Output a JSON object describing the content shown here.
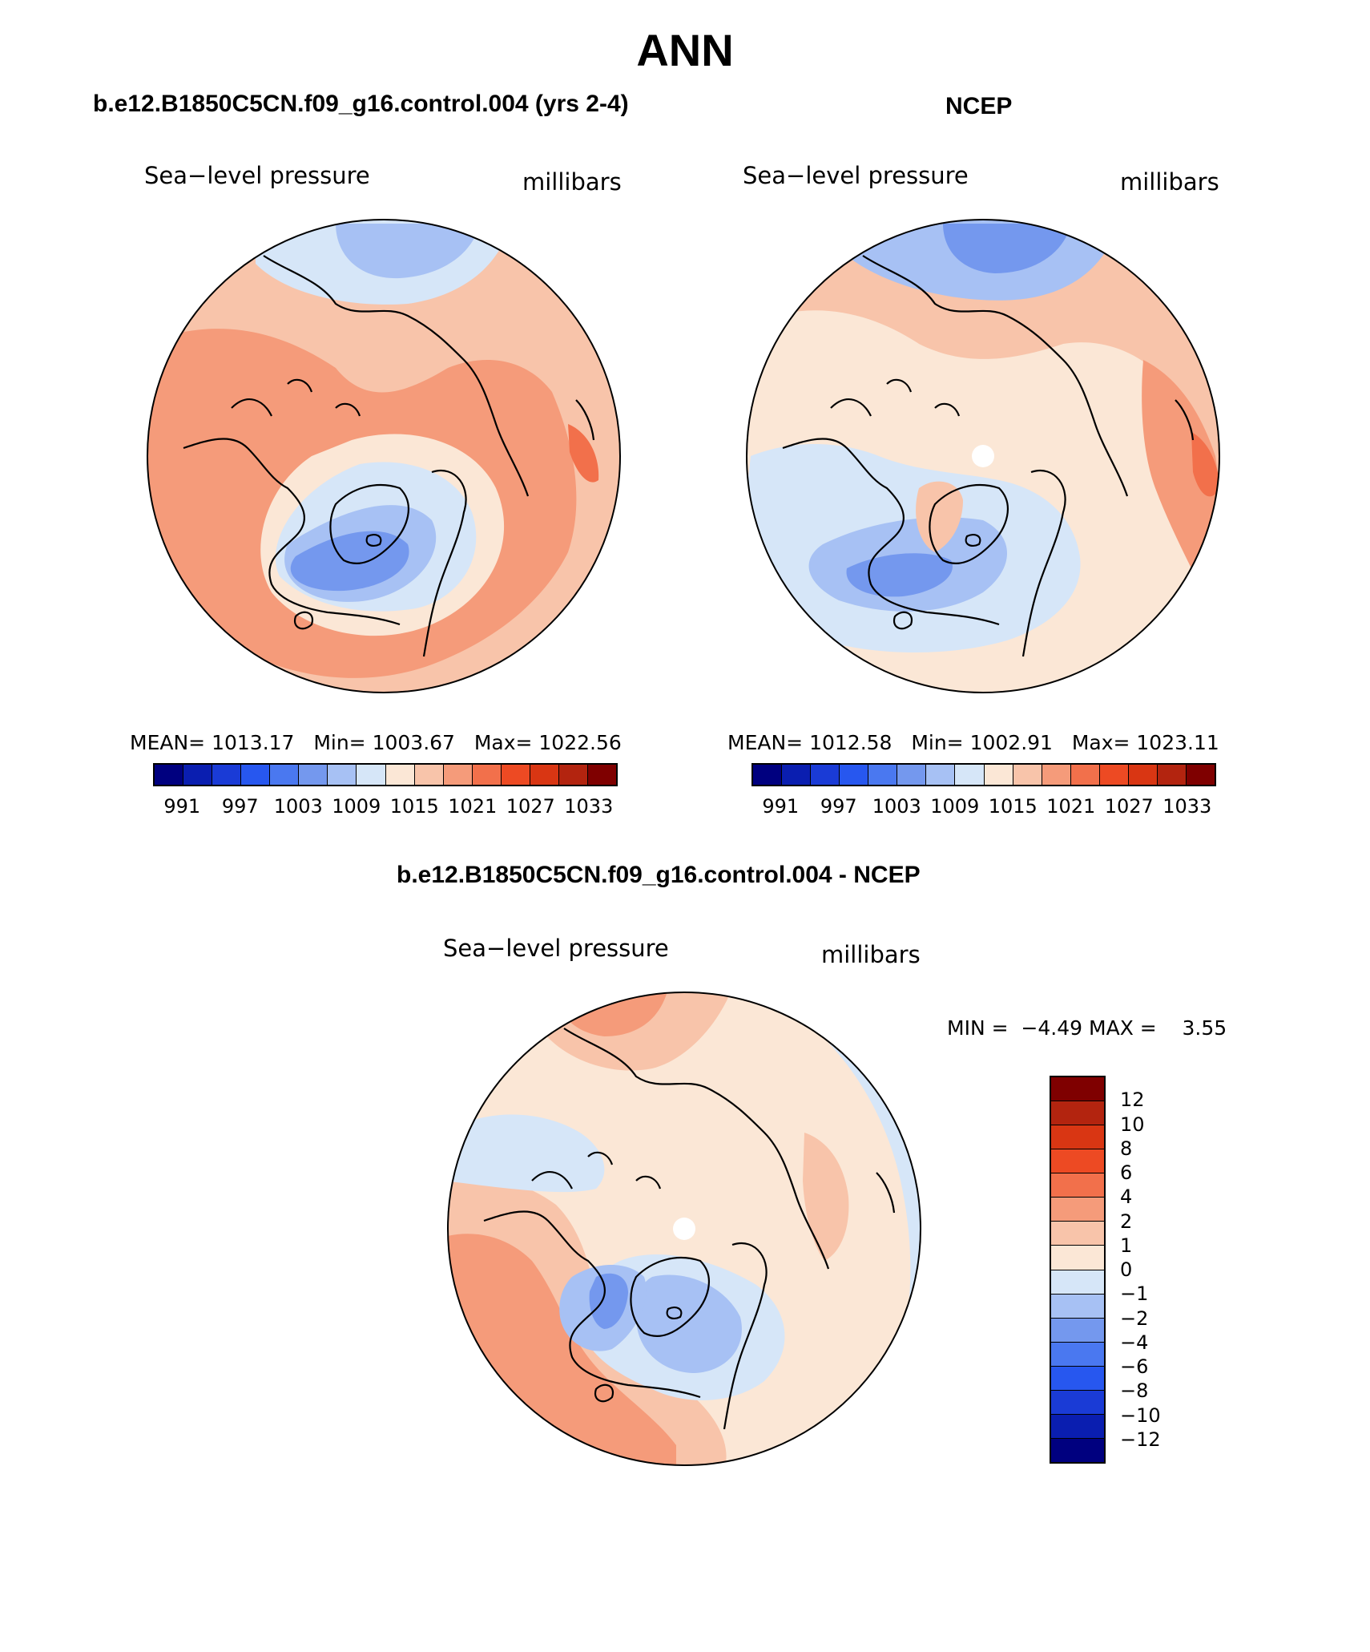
{
  "title": "ANN",
  "panels": {
    "model": {
      "title": "b.e12.B1850C5CN.f09_g16.control.004 (yrs 2-4)",
      "variable": "Sea−level pressure",
      "units": "millibars",
      "mean_label": "MEAN=",
      "mean": "1013.17",
      "min_label": "Min=",
      "min": "1003.67",
      "max_label": "Max=",
      "max": "1022.56"
    },
    "obs": {
      "title": "NCEP",
      "variable": "Sea−level pressure",
      "units": "millibars",
      "mean_label": "MEAN=",
      "mean": "1012.58",
      "min_label": "Min=",
      "min": "1002.91",
      "max_label": "Max=",
      "max": "1023.11"
    },
    "diff": {
      "title": "b.e12.B1850C5CN.f09_g16.control.004 - NCEP",
      "variable": "Sea−level pressure",
      "units": "millibars",
      "min_label": "MIN =",
      "min": "−4.49",
      "max_label": "MAX =",
      "max": "3.55"
    }
  },
  "colorbar_abs": {
    "labels": [
      "991",
      "997",
      "1003",
      "1009",
      "1015",
      "1021",
      "1027",
      "1033"
    ],
    "colors": [
      "#00007f",
      "#0a1eb0",
      "#1a3bd6",
      "#2757ef",
      "#4a78f0",
      "#7498ee",
      "#a7c1f4",
      "#d6e6f8",
      "#fbe7d6",
      "#f8c4aa",
      "#f59b7a",
      "#f2704b",
      "#ed4a23",
      "#d93613",
      "#b3240f",
      "#7f0000"
    ]
  },
  "colorbar_diff": {
    "labels": [
      "12",
      "10",
      "8",
      "6",
      "4",
      "2",
      "1",
      "0",
      "−1",
      "−2",
      "−4",
      "−6",
      "−8",
      "−10",
      "−12"
    ],
    "colors": [
      "#7f0000",
      "#b3240f",
      "#d93613",
      "#ed4a23",
      "#f2704b",
      "#f59b7a",
      "#f8c4aa",
      "#fbe7d6",
      "#d6e6f8",
      "#a7c1f4",
      "#7498ee",
      "#4a78f0",
      "#2757ef",
      "#1a3bd6",
      "#0a1eb0",
      "#00007f"
    ]
  },
  "map_colors": {
    "light_blue": "#d6e6f8",
    "mid_blue": "#a7c1f4",
    "blue": "#7498ee",
    "deep_blue": "#4a78f0",
    "cream": "#fbe7d6",
    "peach": "#f8c4aa",
    "salmon": "#f59b7a",
    "orange": "#f2704b",
    "pole": "#ffffff"
  }
}
